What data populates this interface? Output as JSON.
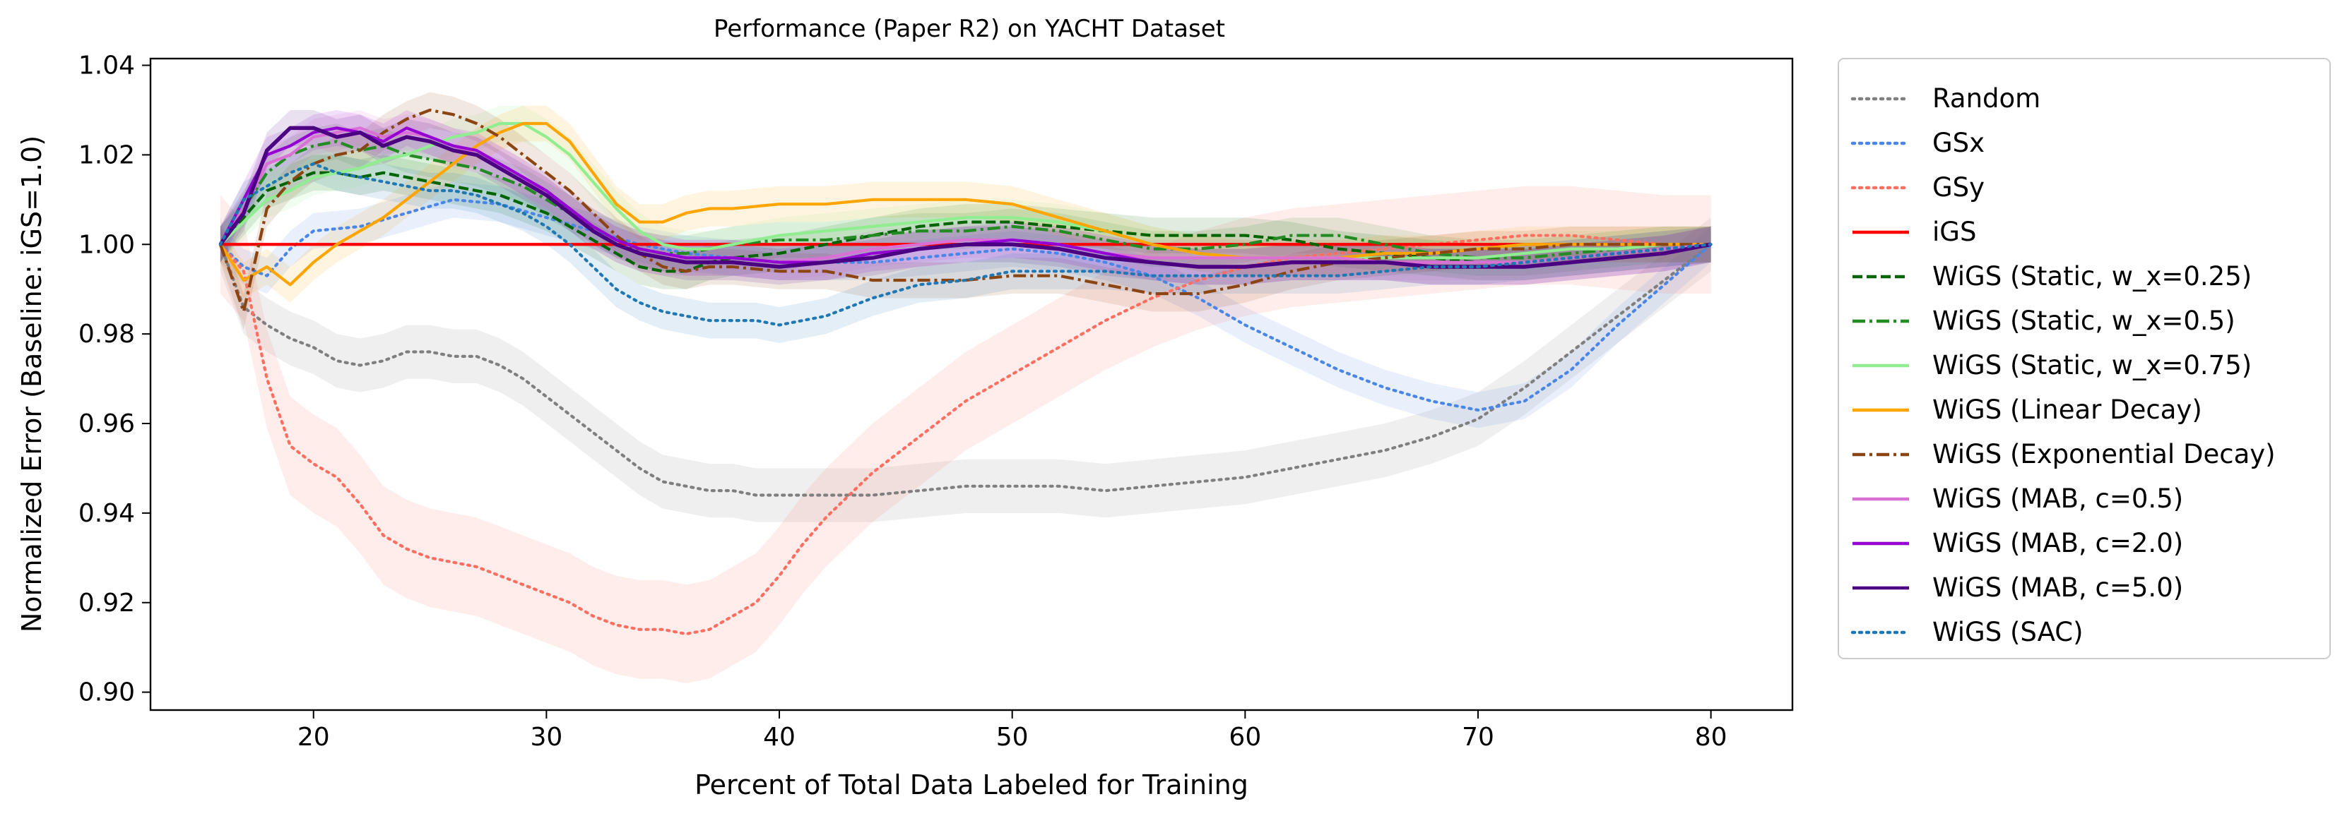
{
  "chart_data": {
    "type": "line",
    "title": "Performance (Paper R2) on YACHT Dataset",
    "xlabel": "Percent of Total Data Labeled for Training",
    "ylabel": "Normalized Error (Baseline: iGS=1.0)",
    "xlim": [
      13,
      83.5
    ],
    "ylim": [
      0.896,
      1.0415
    ],
    "xticks": [
      20,
      30,
      40,
      50,
      60,
      70,
      80
    ],
    "yticks": [
      0.9,
      0.92,
      0.94,
      0.96,
      0.98,
      1.0,
      1.02,
      1.04
    ],
    "xtick_labels": [
      "20",
      "30",
      "40",
      "50",
      "60",
      "70",
      "80"
    ],
    "ytick_labels": [
      "0.90",
      "0.92",
      "0.94",
      "0.96",
      "0.98",
      "1.00",
      "1.02",
      "1.04"
    ],
    "grid": false,
    "legend_position": "outside-right",
    "series": [
      {
        "name": "Random",
        "color": "#7f7f7f",
        "dash": "dotted",
        "band": 0.006,
        "x": [
          16,
          17,
          18,
          19,
          20,
          21,
          22,
          23,
          24,
          25,
          26,
          27,
          28,
          29,
          30,
          31,
          32,
          33,
          34,
          35,
          36,
          37,
          38,
          39,
          40,
          42,
          44,
          46,
          48,
          50,
          52,
          54,
          56,
          58,
          60,
          62,
          64,
          66,
          68,
          70,
          72,
          74,
          76,
          78,
          80
        ],
        "y": [
          1.0,
          0.986,
          0.982,
          0.979,
          0.977,
          0.974,
          0.973,
          0.974,
          0.976,
          0.976,
          0.975,
          0.975,
          0.973,
          0.97,
          0.966,
          0.962,
          0.958,
          0.954,
          0.95,
          0.947,
          0.946,
          0.945,
          0.945,
          0.944,
          0.944,
          0.944,
          0.944,
          0.945,
          0.946,
          0.946,
          0.946,
          0.945,
          0.946,
          0.947,
          0.948,
          0.95,
          0.952,
          0.954,
          0.957,
          0.961,
          0.968,
          0.976,
          0.984,
          0.992,
          1.0
        ]
      },
      {
        "name": "GSx",
        "color": "#4a86e8",
        "dash": "dotted",
        "band": 0.004,
        "x": [
          16,
          17,
          18,
          19,
          20,
          22,
          24,
          26,
          28,
          30,
          32,
          34,
          36,
          38,
          40,
          44,
          48,
          50,
          52,
          54,
          56,
          58,
          60,
          62,
          64,
          66,
          68,
          70,
          72,
          74,
          76,
          78,
          80
        ],
        "y": [
          1.0,
          0.995,
          0.993,
          0.999,
          1.003,
          1.004,
          1.007,
          1.01,
          1.009,
          1.006,
          1.003,
          1.0,
          0.998,
          0.997,
          0.996,
          0.996,
          0.998,
          0.999,
          0.998,
          0.996,
          0.993,
          0.988,
          0.982,
          0.977,
          0.972,
          0.968,
          0.965,
          0.963,
          0.965,
          0.972,
          0.982,
          0.991,
          1.0
        ]
      },
      {
        "name": "GSy",
        "color": "#ff6f61",
        "dash": "dotted",
        "band": 0.011,
        "x": [
          16,
          17,
          18,
          19,
          20,
          21,
          22,
          23,
          24,
          25,
          26,
          27,
          28,
          29,
          30,
          31,
          32,
          33,
          34,
          35,
          36,
          37,
          38,
          39,
          40,
          41,
          42,
          43,
          44,
          46,
          48,
          50,
          52,
          54,
          56,
          58,
          60,
          62,
          64,
          66,
          68,
          70,
          72,
          74,
          76,
          78,
          80
        ],
        "y": [
          1.0,
          0.994,
          0.97,
          0.955,
          0.951,
          0.948,
          0.942,
          0.935,
          0.932,
          0.93,
          0.929,
          0.928,
          0.926,
          0.924,
          0.922,
          0.92,
          0.917,
          0.915,
          0.914,
          0.914,
          0.913,
          0.914,
          0.917,
          0.92,
          0.926,
          0.933,
          0.939,
          0.944,
          0.949,
          0.957,
          0.965,
          0.971,
          0.977,
          0.983,
          0.988,
          0.992,
          0.995,
          0.997,
          0.998,
          0.999,
          1.0,
          1.001,
          1.002,
          1.002,
          1.001,
          1.0,
          1.0
        ]
      },
      {
        "name": "iGS",
        "color": "#ff0000",
        "dash": "solid",
        "band": 0,
        "x": [
          16,
          80
        ],
        "y": [
          1.0,
          1.0
        ]
      },
      {
        "name": "WiGS (Static, w_x=0.25)",
        "color": "#006400",
        "dash": "dashed",
        "band": 0.004,
        "x": [
          16,
          17,
          18,
          19,
          20,
          21,
          22,
          23,
          24,
          25,
          26,
          27,
          28,
          29,
          30,
          31,
          32,
          33,
          34,
          35,
          36,
          37,
          38,
          40,
          42,
          44,
          46,
          48,
          50,
          52,
          54,
          56,
          58,
          60,
          62,
          64,
          66,
          68,
          70,
          72,
          74,
          76,
          78,
          80
        ],
        "y": [
          1.0,
          1.006,
          1.012,
          1.014,
          1.016,
          1.016,
          1.015,
          1.016,
          1.015,
          1.014,
          1.013,
          1.012,
          1.011,
          1.009,
          1.007,
          1.004,
          1.001,
          0.998,
          0.995,
          0.994,
          0.994,
          0.996,
          0.997,
          0.998,
          1.0,
          1.002,
          1.004,
          1.005,
          1.005,
          1.004,
          1.003,
          1.002,
          1.002,
          1.002,
          1.001,
          0.999,
          0.998,
          0.997,
          0.996,
          0.996,
          0.997,
          0.998,
          0.999,
          1.0
        ]
      },
      {
        "name": "WiGS (Static, w_x=0.5)",
        "color": "#228b22",
        "dash": "dashdot",
        "band": 0.004,
        "x": [
          16,
          17,
          18,
          19,
          20,
          21,
          22,
          23,
          24,
          25,
          26,
          27,
          28,
          29,
          30,
          31,
          32,
          33,
          34,
          35,
          36,
          37,
          38,
          40,
          42,
          44,
          46,
          48,
          50,
          52,
          54,
          56,
          58,
          60,
          62,
          64,
          66,
          68,
          70,
          72,
          74,
          76,
          78,
          80
        ],
        "y": [
          1.0,
          1.008,
          1.016,
          1.02,
          1.022,
          1.023,
          1.021,
          1.022,
          1.02,
          1.019,
          1.018,
          1.017,
          1.015,
          1.013,
          1.01,
          1.007,
          1.004,
          1.001,
          0.999,
          0.998,
          0.998,
          0.999,
          1.0,
          1.001,
          1.001,
          1.002,
          1.003,
          1.003,
          1.004,
          1.003,
          1.001,
          0.999,
          0.999,
          1.0,
          1.002,
          1.002,
          1.0,
          0.998,
          0.997,
          0.997,
          0.998,
          0.999,
          1.0,
          1.0
        ]
      },
      {
        "name": "WiGS (Static, w_x=0.75)",
        "color": "#90ee90",
        "dash": "solid",
        "band": 0.004,
        "x": [
          16,
          17,
          18,
          19,
          20,
          21,
          22,
          23,
          24,
          25,
          26,
          27,
          28,
          29,
          30,
          31,
          32,
          33,
          34,
          35,
          36,
          37,
          38,
          40,
          42,
          44,
          46,
          48,
          50,
          52,
          54,
          56,
          58,
          60,
          62,
          64,
          66,
          68,
          70,
          72,
          74,
          76,
          78,
          80
        ],
        "y": [
          1.0,
          1.005,
          1.01,
          1.012,
          1.015,
          1.016,
          1.017,
          1.019,
          1.02,
          1.022,
          1.024,
          1.025,
          1.027,
          1.027,
          1.024,
          1.02,
          1.014,
          1.008,
          1.003,
          1.0,
          0.999,
          0.999,
          1.0,
          1.002,
          1.003,
          1.004,
          1.005,
          1.006,
          1.006,
          1.005,
          1.003,
          1.0,
          0.998,
          0.997,
          0.997,
          0.997,
          0.997,
          0.997,
          0.997,
          0.998,
          0.999,
          0.999,
          1.0,
          1.0
        ]
      },
      {
        "name": "WiGS (Linear Decay)",
        "color": "#ffa500",
        "dash": "solid",
        "band": 0.004,
        "x": [
          16,
          17,
          18,
          19,
          20,
          21,
          22,
          23,
          24,
          25,
          26,
          27,
          28,
          29,
          30,
          31,
          32,
          33,
          34,
          35,
          36,
          37,
          38,
          40,
          42,
          44,
          46,
          48,
          50,
          52,
          54,
          56,
          58,
          60,
          62,
          64,
          66,
          68,
          70,
          72,
          74,
          76,
          78,
          80
        ],
        "y": [
          1.0,
          0.992,
          0.995,
          0.991,
          0.996,
          1.0,
          1.003,
          1.006,
          1.01,
          1.014,
          1.018,
          1.022,
          1.025,
          1.027,
          1.027,
          1.023,
          1.016,
          1.009,
          1.005,
          1.005,
          1.007,
          1.008,
          1.008,
          1.009,
          1.009,
          1.01,
          1.01,
          1.01,
          1.009,
          1.006,
          1.003,
          1.0,
          0.998,
          0.997,
          0.997,
          0.997,
          0.998,
          0.998,
          0.999,
          1.0,
          1.0,
          1.0,
          1.0,
          1.0
        ]
      },
      {
        "name": "WiGS (Exponential Decay)",
        "color": "#8b4513",
        "dash": "dashdot",
        "band": 0.004,
        "x": [
          16,
          17,
          18,
          19,
          20,
          21,
          22,
          23,
          24,
          25,
          26,
          27,
          28,
          29,
          30,
          31,
          32,
          33,
          34,
          35,
          36,
          37,
          38,
          40,
          42,
          44,
          46,
          48,
          50,
          52,
          54,
          56,
          58,
          60,
          62,
          64,
          66,
          68,
          70,
          72,
          74,
          76,
          78,
          80
        ],
        "y": [
          1.0,
          0.985,
          1.008,
          1.014,
          1.018,
          1.02,
          1.021,
          1.025,
          1.028,
          1.03,
          1.029,
          1.027,
          1.024,
          1.02,
          1.016,
          1.012,
          1.007,
          1.002,
          0.998,
          0.995,
          0.994,
          0.995,
          0.995,
          0.994,
          0.994,
          0.992,
          0.992,
          0.992,
          0.993,
          0.993,
          0.991,
          0.989,
          0.989,
          0.991,
          0.994,
          0.996,
          0.997,
          0.998,
          0.999,
          0.999,
          1.0,
          1.0,
          1.0,
          1.0
        ]
      },
      {
        "name": "WiGS (MAB, c=0.5)",
        "color": "#da70d6",
        "dash": "solid",
        "band": 0.004,
        "x": [
          16,
          17,
          18,
          19,
          20,
          21,
          22,
          23,
          24,
          25,
          26,
          27,
          28,
          29,
          30,
          31,
          32,
          33,
          34,
          35,
          36,
          37,
          38,
          40,
          42,
          44,
          46,
          48,
          50,
          52,
          54,
          56,
          58,
          60,
          62,
          64,
          66,
          68,
          70,
          72,
          74,
          76,
          78,
          80
        ],
        "y": [
          1.0,
          1.008,
          1.018,
          1.02,
          1.024,
          1.025,
          1.026,
          1.024,
          1.025,
          1.024,
          1.022,
          1.02,
          1.018,
          1.015,
          1.011,
          1.007,
          1.003,
          1.0,
          0.998,
          0.997,
          0.997,
          0.997,
          0.997,
          0.996,
          0.997,
          0.999,
          1.0,
          1.001,
          1.001,
          1.0,
          0.998,
          0.997,
          0.997,
          0.997,
          0.997,
          0.997,
          0.996,
          0.996,
          0.996,
          0.996,
          0.997,
          0.998,
          0.999,
          1.0
        ]
      },
      {
        "name": "WiGS (MAB, c=2.0)",
        "color": "#9400d3",
        "dash": "solid",
        "band": 0.004,
        "x": [
          16,
          17,
          18,
          19,
          20,
          21,
          22,
          23,
          24,
          25,
          26,
          27,
          28,
          29,
          30,
          31,
          32,
          33,
          34,
          35,
          36,
          37,
          38,
          40,
          42,
          44,
          46,
          48,
          50,
          52,
          54,
          56,
          58,
          60,
          62,
          64,
          66,
          68,
          70,
          72,
          74,
          76,
          78,
          80
        ],
        "y": [
          1.0,
          1.01,
          1.02,
          1.022,
          1.025,
          1.026,
          1.025,
          1.023,
          1.026,
          1.024,
          1.022,
          1.021,
          1.018,
          1.015,
          1.012,
          1.008,
          1.004,
          1.001,
          0.999,
          0.998,
          0.997,
          0.997,
          0.997,
          0.996,
          0.996,
          0.998,
          0.999,
          1.0,
          1.001,
          1.0,
          0.998,
          0.996,
          0.995,
          0.995,
          0.996,
          0.996,
          0.996,
          0.995,
          0.995,
          0.995,
          0.996,
          0.997,
          0.998,
          1.0
        ]
      },
      {
        "name": "WiGS (MAB, c=5.0)",
        "color": "#4b0082",
        "dash": "solid",
        "band": 0.004,
        "x": [
          16,
          17,
          18,
          19,
          20,
          21,
          22,
          23,
          24,
          25,
          26,
          27,
          28,
          29,
          30,
          31,
          32,
          33,
          34,
          35,
          36,
          37,
          38,
          40,
          42,
          44,
          46,
          48,
          50,
          52,
          54,
          56,
          58,
          60,
          62,
          64,
          66,
          68,
          70,
          72,
          74,
          76,
          78,
          80
        ],
        "y": [
          1.0,
          1.007,
          1.021,
          1.026,
          1.026,
          1.024,
          1.025,
          1.022,
          1.024,
          1.023,
          1.021,
          1.02,
          1.017,
          1.014,
          1.011,
          1.007,
          1.003,
          1.0,
          0.998,
          0.997,
          0.996,
          0.996,
          0.996,
          0.995,
          0.996,
          0.997,
          0.999,
          1.0,
          1.0,
          0.999,
          0.997,
          0.996,
          0.995,
          0.995,
          0.996,
          0.996,
          0.996,
          0.995,
          0.995,
          0.995,
          0.996,
          0.997,
          0.998,
          1.0
        ]
      },
      {
        "name": "WiGS (SAC)",
        "color": "#1f77b4",
        "dash": "dotted",
        "band": 0.004,
        "x": [
          16,
          17,
          18,
          19,
          20,
          21,
          22,
          23,
          24,
          25,
          26,
          27,
          28,
          29,
          30,
          31,
          32,
          33,
          34,
          35,
          36,
          37,
          38,
          39,
          40,
          41,
          42,
          44,
          46,
          48,
          50,
          52,
          54,
          56,
          58,
          60,
          62,
          64,
          66,
          68,
          70,
          72,
          74,
          76,
          78,
          80
        ],
        "y": [
          1.0,
          1.01,
          1.013,
          1.016,
          1.018,
          1.016,
          1.015,
          1.014,
          1.013,
          1.012,
          1.012,
          1.011,
          1.009,
          1.007,
          1.004,
          1.0,
          0.995,
          0.99,
          0.987,
          0.985,
          0.984,
          0.983,
          0.983,
          0.983,
          0.982,
          0.983,
          0.984,
          0.988,
          0.991,
          0.992,
          0.994,
          0.994,
          0.994,
          0.993,
          0.993,
          0.993,
          0.993,
          0.993,
          0.994,
          0.995,
          0.995,
          0.996,
          0.997,
          0.998,
          0.999,
          1.0
        ]
      }
    ]
  }
}
